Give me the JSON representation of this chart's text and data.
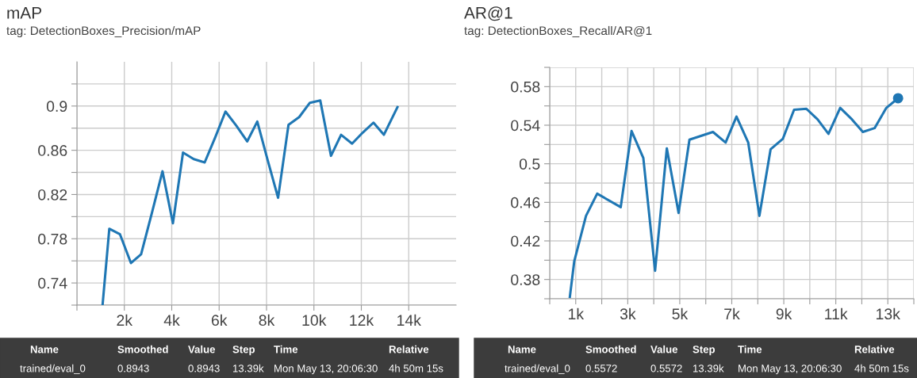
{
  "chart_data": [
    {
      "type": "line",
      "title": "mAP",
      "subtitle": "tag: DetectionBoxes_Precision/mAP",
      "series": [
        {
          "color": "#1f77b4",
          "x": [
            1085,
            1366,
            1817,
            2280,
            2707,
            3159,
            3610,
            4049,
            4476,
            4927,
            5390,
            5841,
            6268,
            6732,
            7183,
            7610,
            8037,
            8488,
            8927,
            9378,
            9829,
            10268,
            10720,
            11146,
            11610,
            12061,
            12512,
            12951,
            13524
          ],
          "values": [
            0.721,
            0.789,
            0.784,
            0.758,
            0.766,
            0.803,
            0.841,
            0.794,
            0.858,
            0.852,
            0.849,
            0.872,
            0.895,
            0.882,
            0.868,
            0.886,
            0.852,
            0.817,
            0.883,
            0.89,
            0.903,
            0.905,
            0.855,
            0.874,
            0.866,
            0.876,
            0.885,
            0.874,
            0.899
          ]
        }
      ],
      "xlim": [
        0,
        16000
      ],
      "ylim": [
        0.72,
        0.94
      ],
      "xticks": [
        {
          "value": 0,
          "label": null
        },
        {
          "value": 2000,
          "label": "2k"
        },
        {
          "value": 4000,
          "label": "4k"
        },
        {
          "value": 6000,
          "label": "6k"
        },
        {
          "value": 8000,
          "label": "8k"
        },
        {
          "value": 10000,
          "label": "10k"
        },
        {
          "value": 12000,
          "label": "12k"
        },
        {
          "value": 14000,
          "label": "14k"
        }
      ],
      "yticks": [
        {
          "value": 0.72,
          "label": null
        },
        0.74,
        {
          "value": 0.76,
          "label": null
        },
        0.78,
        {
          "value": 0.8,
          "label": null
        },
        0.82,
        {
          "value": 0.84,
          "label": null
        },
        0.86,
        {
          "value": 0.88,
          "label": null
        },
        0.9,
        {
          "value": 0.92,
          "label": null
        }
      ],
      "grid": true,
      "marker": "none",
      "line_style": "solid",
      "annotations": [
        "Name",
        "Smoothed",
        "Value",
        "Step",
        "Time",
        "Relative",
        "trained/eval_0",
        "0.8943",
        "0.8943",
        "13.39k",
        "Mon May 13, 20:06:30",
        "4h 50m 15s"
      ]
    },
    {
      "type": "line",
      "title": "AR@1",
      "subtitle": "tag: DetectionBoxes_Recall/AR@1",
      "series": [
        {
          "color": "#1f77b4",
          "x": [
            774,
            944,
            1395,
            1825,
            2729,
            3147,
            3599,
            4051,
            4503,
            4955,
            5373,
            6277,
            6763,
            7181,
            7633,
            8062,
            8492,
            8966,
            9395,
            9870,
            10299,
            10718,
            11169,
            11621,
            12040,
            12492,
            12944,
            13395
          ],
          "values": [
            0.362,
            0.399,
            0.446,
            0.469,
            0.455,
            0.534,
            0.506,
            0.389,
            0.516,
            0.449,
            0.525,
            0.533,
            0.522,
            0.549,
            0.522,
            0.446,
            0.515,
            0.526,
            0.556,
            0.557,
            0.546,
            0.531,
            0.558,
            0.546,
            0.533,
            0.537,
            0.558,
            0.568
          ]
        },
        {
          "type": "scatter",
          "marker": "circle",
          "color": "#1f77b4",
          "x": [
            13395
          ],
          "values": [
            0.568
          ]
        }
      ],
      "xlim": [
        0,
        14000
      ],
      "ylim": [
        0.36,
        0.6
      ],
      "xticks": [
        {
          "value": 0,
          "label": null
        },
        {
          "value": 1000,
          "label": "1k"
        },
        {
          "value": 2000,
          "label": null
        },
        {
          "value": 3000,
          "label": "3k"
        },
        {
          "value": 4000,
          "label": null
        },
        {
          "value": 5000,
          "label": "5k"
        },
        {
          "value": 6000,
          "label": null
        },
        {
          "value": 7000,
          "label": "7k"
        },
        {
          "value": 8000,
          "label": null
        },
        {
          "value": 9000,
          "label": "9k"
        },
        {
          "value": 10000,
          "label": null
        },
        {
          "value": 11000,
          "label": "11k"
        },
        {
          "value": 12000,
          "label": null
        },
        {
          "value": 13000,
          "label": "13k"
        },
        {
          "value": 14000,
          "label": null
        }
      ],
      "yticks": [
        {
          "value": 0.36,
          "label": null
        },
        0.38,
        {
          "value": 0.4,
          "label": null
        },
        0.42,
        {
          "value": 0.44,
          "label": null
        },
        0.46,
        {
          "value": 0.48,
          "label": null
        },
        0.5,
        {
          "value": 0.52,
          "label": null
        },
        0.54,
        {
          "value": 0.56,
          "label": null
        },
        0.58,
        {
          "value": 0.6,
          "label": null
        }
      ],
      "grid": true,
      "marker": "none",
      "line_style": "solid",
      "annotations": [
        "Name",
        "Smoothed",
        "Value",
        "Step",
        "Time",
        "Relative",
        "trained/eval_0",
        "0.5572",
        "0.5572",
        "13.39k",
        "Mon May 13, 20:06:30",
        "4h 50m 15s"
      ]
    }
  ]
}
